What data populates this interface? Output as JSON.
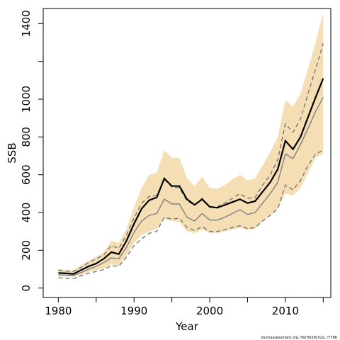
{
  "chart_data": {
    "type": "line",
    "xlabel": "Year",
    "ylabel": "SSB",
    "xlim": [
      1978,
      2016
    ],
    "ylim": [
      -50,
      1480
    ],
    "x_ticks": [
      1980,
      1990,
      2000,
      2010
    ],
    "x_minor_ticks": [
      1985,
      1995,
      2005,
      2015
    ],
    "y_ticks": [
      0,
      200,
      400,
      600,
      800,
      1000,
      1400
    ],
    "y_minor_ticks": [
      1200
    ],
    "grid": false,
    "legend": "none",
    "x": [
      1980,
      1981,
      1982,
      1983,
      1984,
      1985,
      1986,
      1987,
      1988,
      1989,
      1990,
      1991,
      1992,
      1993,
      1994,
      1995,
      1996,
      1997,
      1998,
      1999,
      2000,
      2001,
      2002,
      2003,
      2004,
      2005,
      2006,
      2007,
      2008,
      2009,
      2010,
      2011,
      2012,
      2013,
      2014,
      2015
    ],
    "series": [
      {
        "role": "confidence-band-upper",
        "values": [
          100,
          95,
          95,
          120,
          145,
          165,
          190,
          250,
          240,
          310,
          430,
          530,
          600,
          610,
          730,
          690,
          690,
          580,
          540,
          590,
          530,
          525,
          545,
          575,
          600,
          570,
          580,
          650,
          720,
          800,
          995,
          960,
          1030,
          1160,
          1300,
          1460
        ]
      },
      {
        "role": "confidence-band-lower",
        "values": [
          65,
          62,
          60,
          70,
          85,
          95,
          105,
          125,
          120,
          175,
          240,
          280,
          300,
          315,
          365,
          355,
          350,
          300,
          290,
          310,
          290,
          290,
          300,
          310,
          320,
          305,
          315,
          355,
          385,
          420,
          500,
          490,
          530,
          610,
          690,
          710
        ]
      },
      {
        "role": "estimate",
        "color": "#000000",
        "values": [
          80,
          78,
          75,
          95,
          115,
          130,
          155,
          190,
          180,
          250,
          340,
          420,
          465,
          480,
          580,
          540,
          540,
          470,
          440,
          470,
          430,
          425,
          440,
          455,
          470,
          450,
          460,
          510,
          560,
          630,
          780,
          735,
          800,
          905,
          1010,
          1110
        ]
      },
      {
        "role": "second-estimate",
        "color": "#808080",
        "values": [
          70,
          68,
          67,
          82,
          100,
          115,
          135,
          160,
          155,
          215,
          295,
          355,
          385,
          395,
          470,
          445,
          445,
          375,
          355,
          395,
          360,
          360,
          375,
          395,
          415,
          390,
          400,
          450,
          500,
          560,
          710,
          685,
          760,
          845,
          935,
          1010
        ]
      },
      {
        "role": "second-estimate-interval-upper",
        "color": "#707070",
        "values": [
          95,
          90,
          88,
          110,
          135,
          155,
          175,
          225,
          210,
          280,
          370,
          450,
          485,
          490,
          575,
          535,
          530,
          460,
          440,
          475,
          430,
          430,
          450,
          475,
          500,
          475,
          480,
          545,
          600,
          680,
          870,
          825,
          895,
          1030,
          1160,
          1295
        ]
      },
      {
        "role": "second-estimate-interval-lower",
        "color": "#707070",
        "values": [
          55,
          52,
          50,
          65,
          78,
          88,
          98,
          118,
          115,
          165,
          225,
          260,
          290,
          300,
          375,
          365,
          370,
          320,
          305,
          325,
          300,
          300,
          310,
          320,
          330,
          315,
          320,
          355,
          385,
          420,
          545,
          520,
          570,
          650,
          710,
          730
        ]
      }
    ],
    "band_color": "#f5deb3"
  },
  "footer": {
    "source_text": "stockassessment.org, Her3028ch2a, r7786"
  }
}
